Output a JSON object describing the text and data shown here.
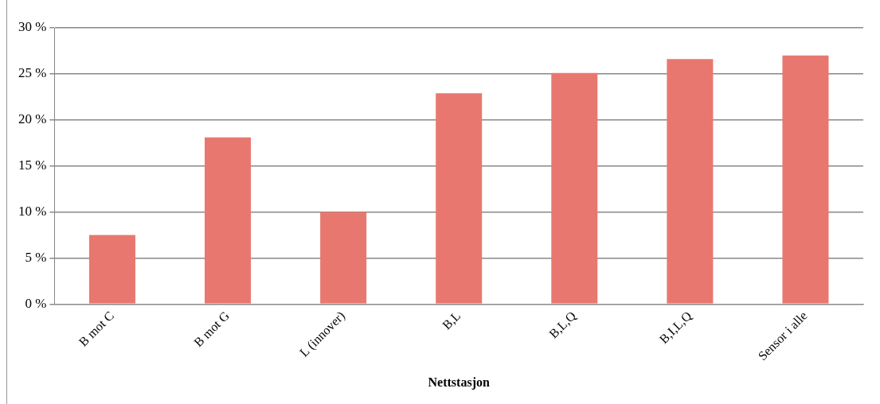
{
  "chart_data": {
    "type": "bar",
    "xlabel": "Nettstasjon",
    "categories": [
      "B mot C",
      "B mot G",
      "L (innover)",
      "B,L",
      "B,L,Q",
      "B,I,L,Q",
      "Sensor i alle"
    ],
    "values": [
      7.5,
      18.1,
      10.0,
      22.9,
      25.1,
      26.6,
      27.0
    ],
    "color": "#e8786f",
    "ylim": [
      0,
      30
    ],
    "yticks": [
      {
        "value": 0,
        "label": "0 %"
      },
      {
        "value": 5,
        "label": "5 %"
      },
      {
        "value": 10,
        "label": "10 %"
      },
      {
        "value": 15,
        "label": "15 %"
      },
      {
        "value": 20,
        "label": "20 %"
      },
      {
        "value": 25,
        "label": "25 %"
      },
      {
        "value": 30,
        "label": "30 %"
      }
    ],
    "grid": "y",
    "legend": false
  }
}
